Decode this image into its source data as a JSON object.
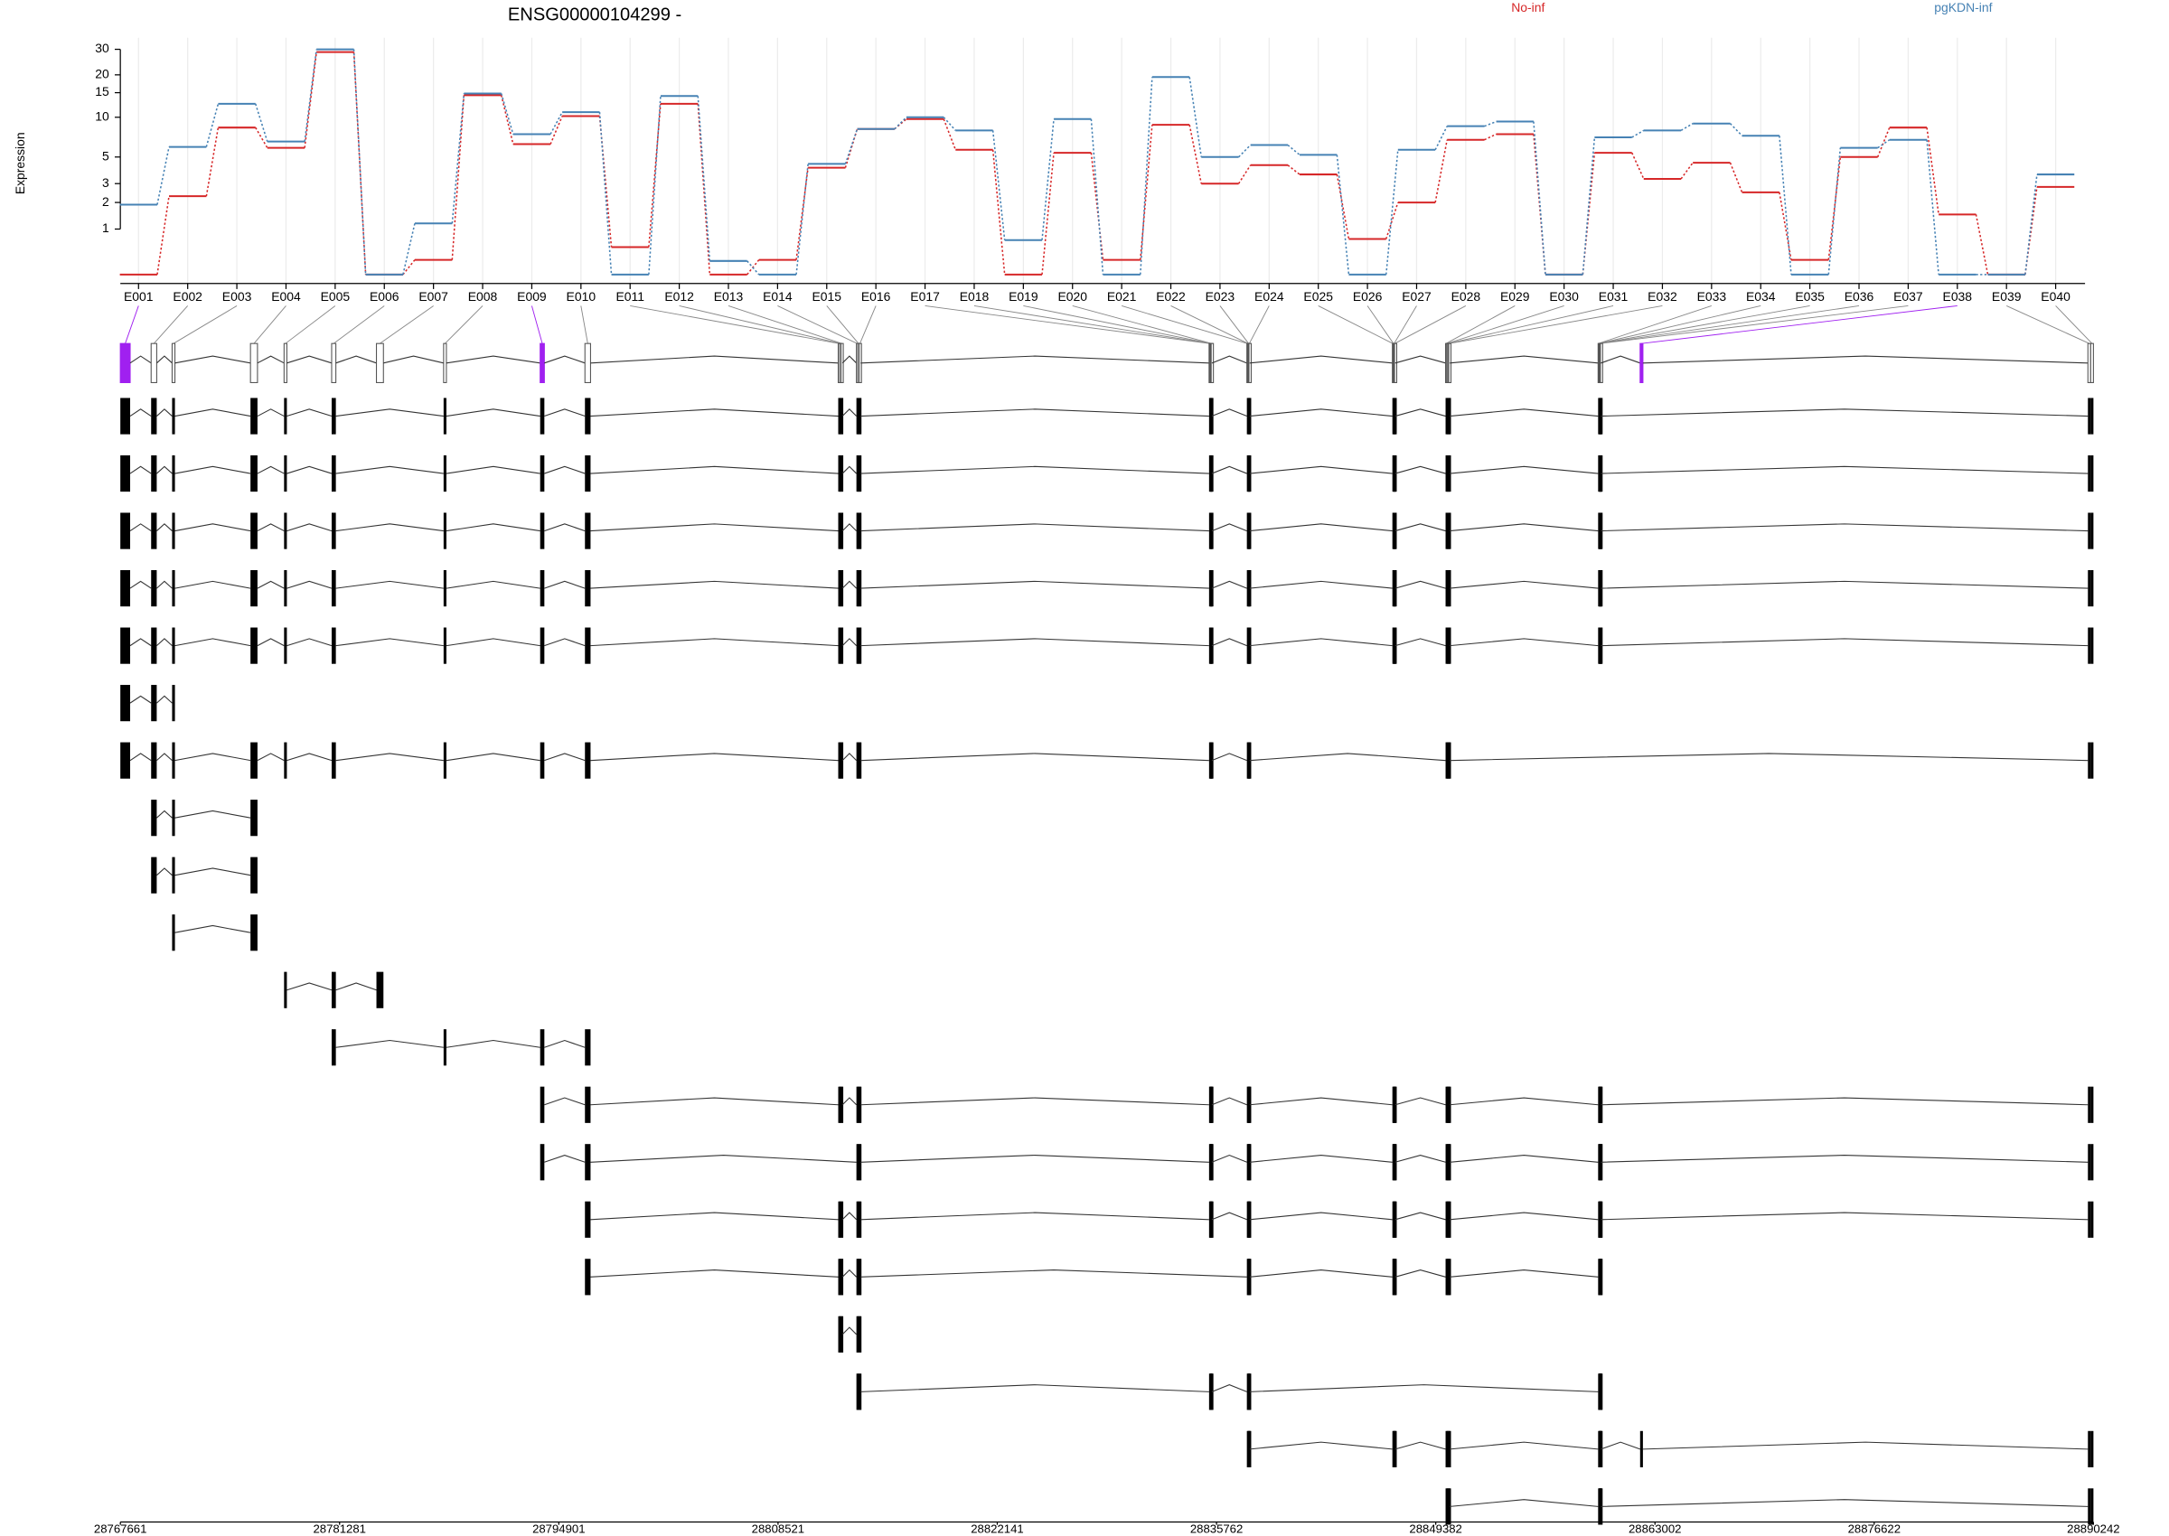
{
  "chart_data": [
    {
      "type": "line",
      "title": "ENSG00000104299 -",
      "ylabel": "Expression",
      "yscale": "log1p",
      "ylim": [
        0,
        36
      ],
      "yticks": [
        1,
        2,
        3,
        5,
        10,
        15,
        20,
        30
      ],
      "grid": true,
      "categories": [
        "E001",
        "E002",
        "E003",
        "E004",
        "E005",
        "E006",
        "E007",
        "E008",
        "E009",
        "E010",
        "E011",
        "E012",
        "E013",
        "E014",
        "E015",
        "E016",
        "E017",
        "E018",
        "E019",
        "E020",
        "E021",
        "E022",
        "E023",
        "E024",
        "E025",
        "E026",
        "E027",
        "E028",
        "E029",
        "E030",
        "E031",
        "E032",
        "E033",
        "E034",
        "E035",
        "E036",
        "E037",
        "E038",
        "E039",
        "E040"
      ],
      "series": [
        {
          "name": "No-inf",
          "color": "#d62728",
          "values": [
            0,
            2.3,
            8.4,
            5.9,
            28.7,
            0,
            0.25,
            14.4,
            6.3,
            10.2,
            0.52,
            12.5,
            0,
            0.25,
            4.1,
            8.2,
            9.7,
            5.7,
            0,
            5.4,
            0.25,
            8.8,
            3.0,
            4.3,
            3.6,
            0.72,
            2.0,
            6.8,
            7.5,
            0,
            5.4,
            3.3,
            4.5,
            2.5,
            0.25,
            5.0,
            8.4,
            1.5,
            0,
            2.8
          ]
        },
        {
          "name": "pgKDN-inf",
          "color": "#4682b4",
          "values": [
            1.9,
            6.0,
            12.5,
            6.6,
            30,
            0,
            1.18,
            14.8,
            7.5,
            10.9,
            0,
            14.2,
            0.23,
            0,
            4.4,
            8.2,
            10.0,
            8.0,
            0.69,
            9.7,
            0,
            19.3,
            5.0,
            6.2,
            5.2,
            0,
            5.7,
            8.6,
            9.3,
            0,
            7.1,
            8.0,
            9.0,
            7.3,
            0,
            5.9,
            6.8,
            0,
            0,
            3.6
          ]
        }
      ]
    },
    {
      "type": "gene_model",
      "xlim": [
        28767661,
        28890242
      ],
      "xticks": [
        28767661,
        28781281,
        28794901,
        28808521,
        28822141,
        28835762,
        28849382,
        28863002,
        28876622,
        28890242
      ],
      "highlight": [
        0,
        8,
        37
      ],
      "highlight_color": "#a020f0",
      "exons": [
        {
          "start": 28767661,
          "end": 28768270
        },
        {
          "start": 28769574,
          "end": 28769921
        },
        {
          "start": 28770878,
          "end": 28771052
        },
        {
          "start": 28775746,
          "end": 28776181
        },
        {
          "start": 28777833,
          "end": 28778007
        },
        {
          "start": 28780789,
          "end": 28781050
        },
        {
          "start": 28783571,
          "end": 28784006
        },
        {
          "start": 28787744,
          "end": 28787918
        },
        {
          "start": 28793743,
          "end": 28794004
        },
        {
          "start": 28796525,
          "end": 28796873
        },
        {
          "start": 28812261,
          "end": 28812348
        },
        {
          "start": 28812348,
          "end": 28812435
        },
        {
          "start": 28812435,
          "end": 28812522
        },
        {
          "start": 28813391,
          "end": 28813478
        },
        {
          "start": 28813478,
          "end": 28813565
        },
        {
          "start": 28813565,
          "end": 28813652
        },
        {
          "start": 28835300,
          "end": 28835343
        },
        {
          "start": 28835343,
          "end": 28835387
        },
        {
          "start": 28835387,
          "end": 28835430
        },
        {
          "start": 28835430,
          "end": 28835474
        },
        {
          "start": 28837648,
          "end": 28837691
        },
        {
          "start": 28837691,
          "end": 28837735
        },
        {
          "start": 28837735,
          "end": 28837778
        },
        {
          "start": 28837778,
          "end": 28837822
        },
        {
          "start": 28846689,
          "end": 28846732
        },
        {
          "start": 28846732,
          "end": 28846776
        },
        {
          "start": 28846776,
          "end": 28846819
        },
        {
          "start": 28846819,
          "end": 28846863
        },
        {
          "start": 28849993,
          "end": 28850058
        },
        {
          "start": 28850058,
          "end": 28850124
        },
        {
          "start": 28850124,
          "end": 28850189
        },
        {
          "start": 28850189,
          "end": 28850254
        },
        {
          "start": 28859470,
          "end": 28859505
        },
        {
          "start": 28859505,
          "end": 28859540
        },
        {
          "start": 28859540,
          "end": 28859575
        },
        {
          "start": 28859575,
          "end": 28859610
        },
        {
          "start": 28859610,
          "end": 28859644
        },
        {
          "start": 28862079,
          "end": 28862253
        },
        {
          "start": 28889899,
          "end": 28890070
        },
        {
          "start": 28890070,
          "end": 28890242
        }
      ],
      "transcripts": [
        [
          0,
          1,
          2,
          3,
          4,
          5,
          7,
          8,
          9,
          10,
          11,
          12,
          13,
          14,
          15,
          16,
          17,
          18,
          19,
          20,
          21,
          22,
          23,
          24,
          25,
          26,
          27,
          28,
          29,
          30,
          31,
          32,
          33,
          34,
          35,
          36,
          38,
          39
        ],
        [
          0,
          1,
          2,
          3,
          4,
          5,
          7,
          8,
          9,
          10,
          11,
          12,
          13,
          14,
          15,
          16,
          17,
          18,
          19,
          20,
          21,
          22,
          23,
          24,
          25,
          26,
          27,
          28,
          29,
          30,
          31,
          32,
          33,
          34,
          35,
          36,
          38,
          39
        ],
        [
          0,
          1,
          2,
          3,
          4,
          5,
          7,
          8,
          9,
          10,
          11,
          12,
          13,
          14,
          15,
          16,
          17,
          18,
          19,
          20,
          21,
          22,
          23,
          24,
          25,
          26,
          27,
          28,
          29,
          30,
          31,
          32,
          33,
          34,
          35,
          36,
          38,
          39
        ],
        [
          0,
          1,
          2,
          3,
          4,
          5,
          7,
          8,
          9,
          10,
          11,
          12,
          13,
          14,
          15,
          16,
          17,
          18,
          19,
          20,
          21,
          22,
          23,
          24,
          25,
          26,
          27,
          28,
          29,
          30,
          31,
          32,
          33,
          34,
          35,
          36,
          38,
          39
        ],
        [
          0,
          1,
          2,
          3,
          4,
          5,
          7,
          8,
          9,
          10,
          11,
          12,
          13,
          14,
          15,
          16,
          17,
          18,
          19,
          20,
          21,
          22,
          23,
          24,
          25,
          26,
          27,
          28,
          29,
          30,
          31,
          32,
          33,
          34,
          35,
          36,
          38,
          39
        ],
        [
          0,
          1,
          2
        ],
        [
          0,
          1,
          2,
          3,
          4,
          5,
          7,
          8,
          9,
          10,
          11,
          12,
          13,
          14,
          15,
          16,
          17,
          18,
          19,
          20,
          21,
          22,
          23,
          28,
          29,
          30,
          31,
          38,
          39
        ],
        [
          1,
          2,
          3
        ],
        [
          1,
          2,
          3
        ],
        [
          2,
          3
        ],
        [
          4,
          5,
          6
        ],
        [
          5,
          7,
          8,
          9
        ],
        [
          8,
          9,
          10,
          11,
          12,
          13,
          14,
          15,
          16,
          17,
          18,
          19,
          20,
          21,
          22,
          23,
          24,
          25,
          26,
          27,
          28,
          29,
          30,
          31,
          32,
          33,
          34,
          35,
          36,
          38,
          39
        ],
        [
          8,
          9,
          13,
          14,
          15,
          16,
          17,
          18,
          19,
          20,
          21,
          22,
          23,
          24,
          25,
          26,
          27,
          28,
          29,
          30,
          31,
          32,
          33,
          34,
          35,
          36,
          38,
          39
        ],
        [
          9,
          10,
          11,
          12,
          13,
          14,
          15,
          16,
          17,
          18,
          19,
          20,
          21,
          22,
          23,
          24,
          25,
          26,
          27,
          28,
          29,
          30,
          31,
          32,
          33,
          34,
          35,
          36,
          38,
          39
        ],
        [
          9,
          10,
          11,
          12,
          13,
          14,
          15,
          20,
          21,
          22,
          23,
          24,
          25,
          26,
          27,
          28,
          29,
          30,
          31,
          32,
          33,
          34,
          35,
          36
        ],
        [
          10,
          11,
          12,
          13,
          14,
          15
        ],
        [
          13,
          14,
          15,
          16,
          17,
          18,
          19,
          20,
          21,
          22,
          23,
          32,
          33,
          34,
          35,
          36
        ],
        [
          20,
          21,
          22,
          23,
          24,
          25,
          26,
          27,
          28,
          29,
          30,
          31,
          32,
          33,
          34,
          35,
          36,
          37,
          38,
          39
        ],
        [
          28,
          29,
          30,
          31,
          32,
          33,
          34,
          35,
          36,
          38,
          39
        ]
      ]
    }
  ]
}
